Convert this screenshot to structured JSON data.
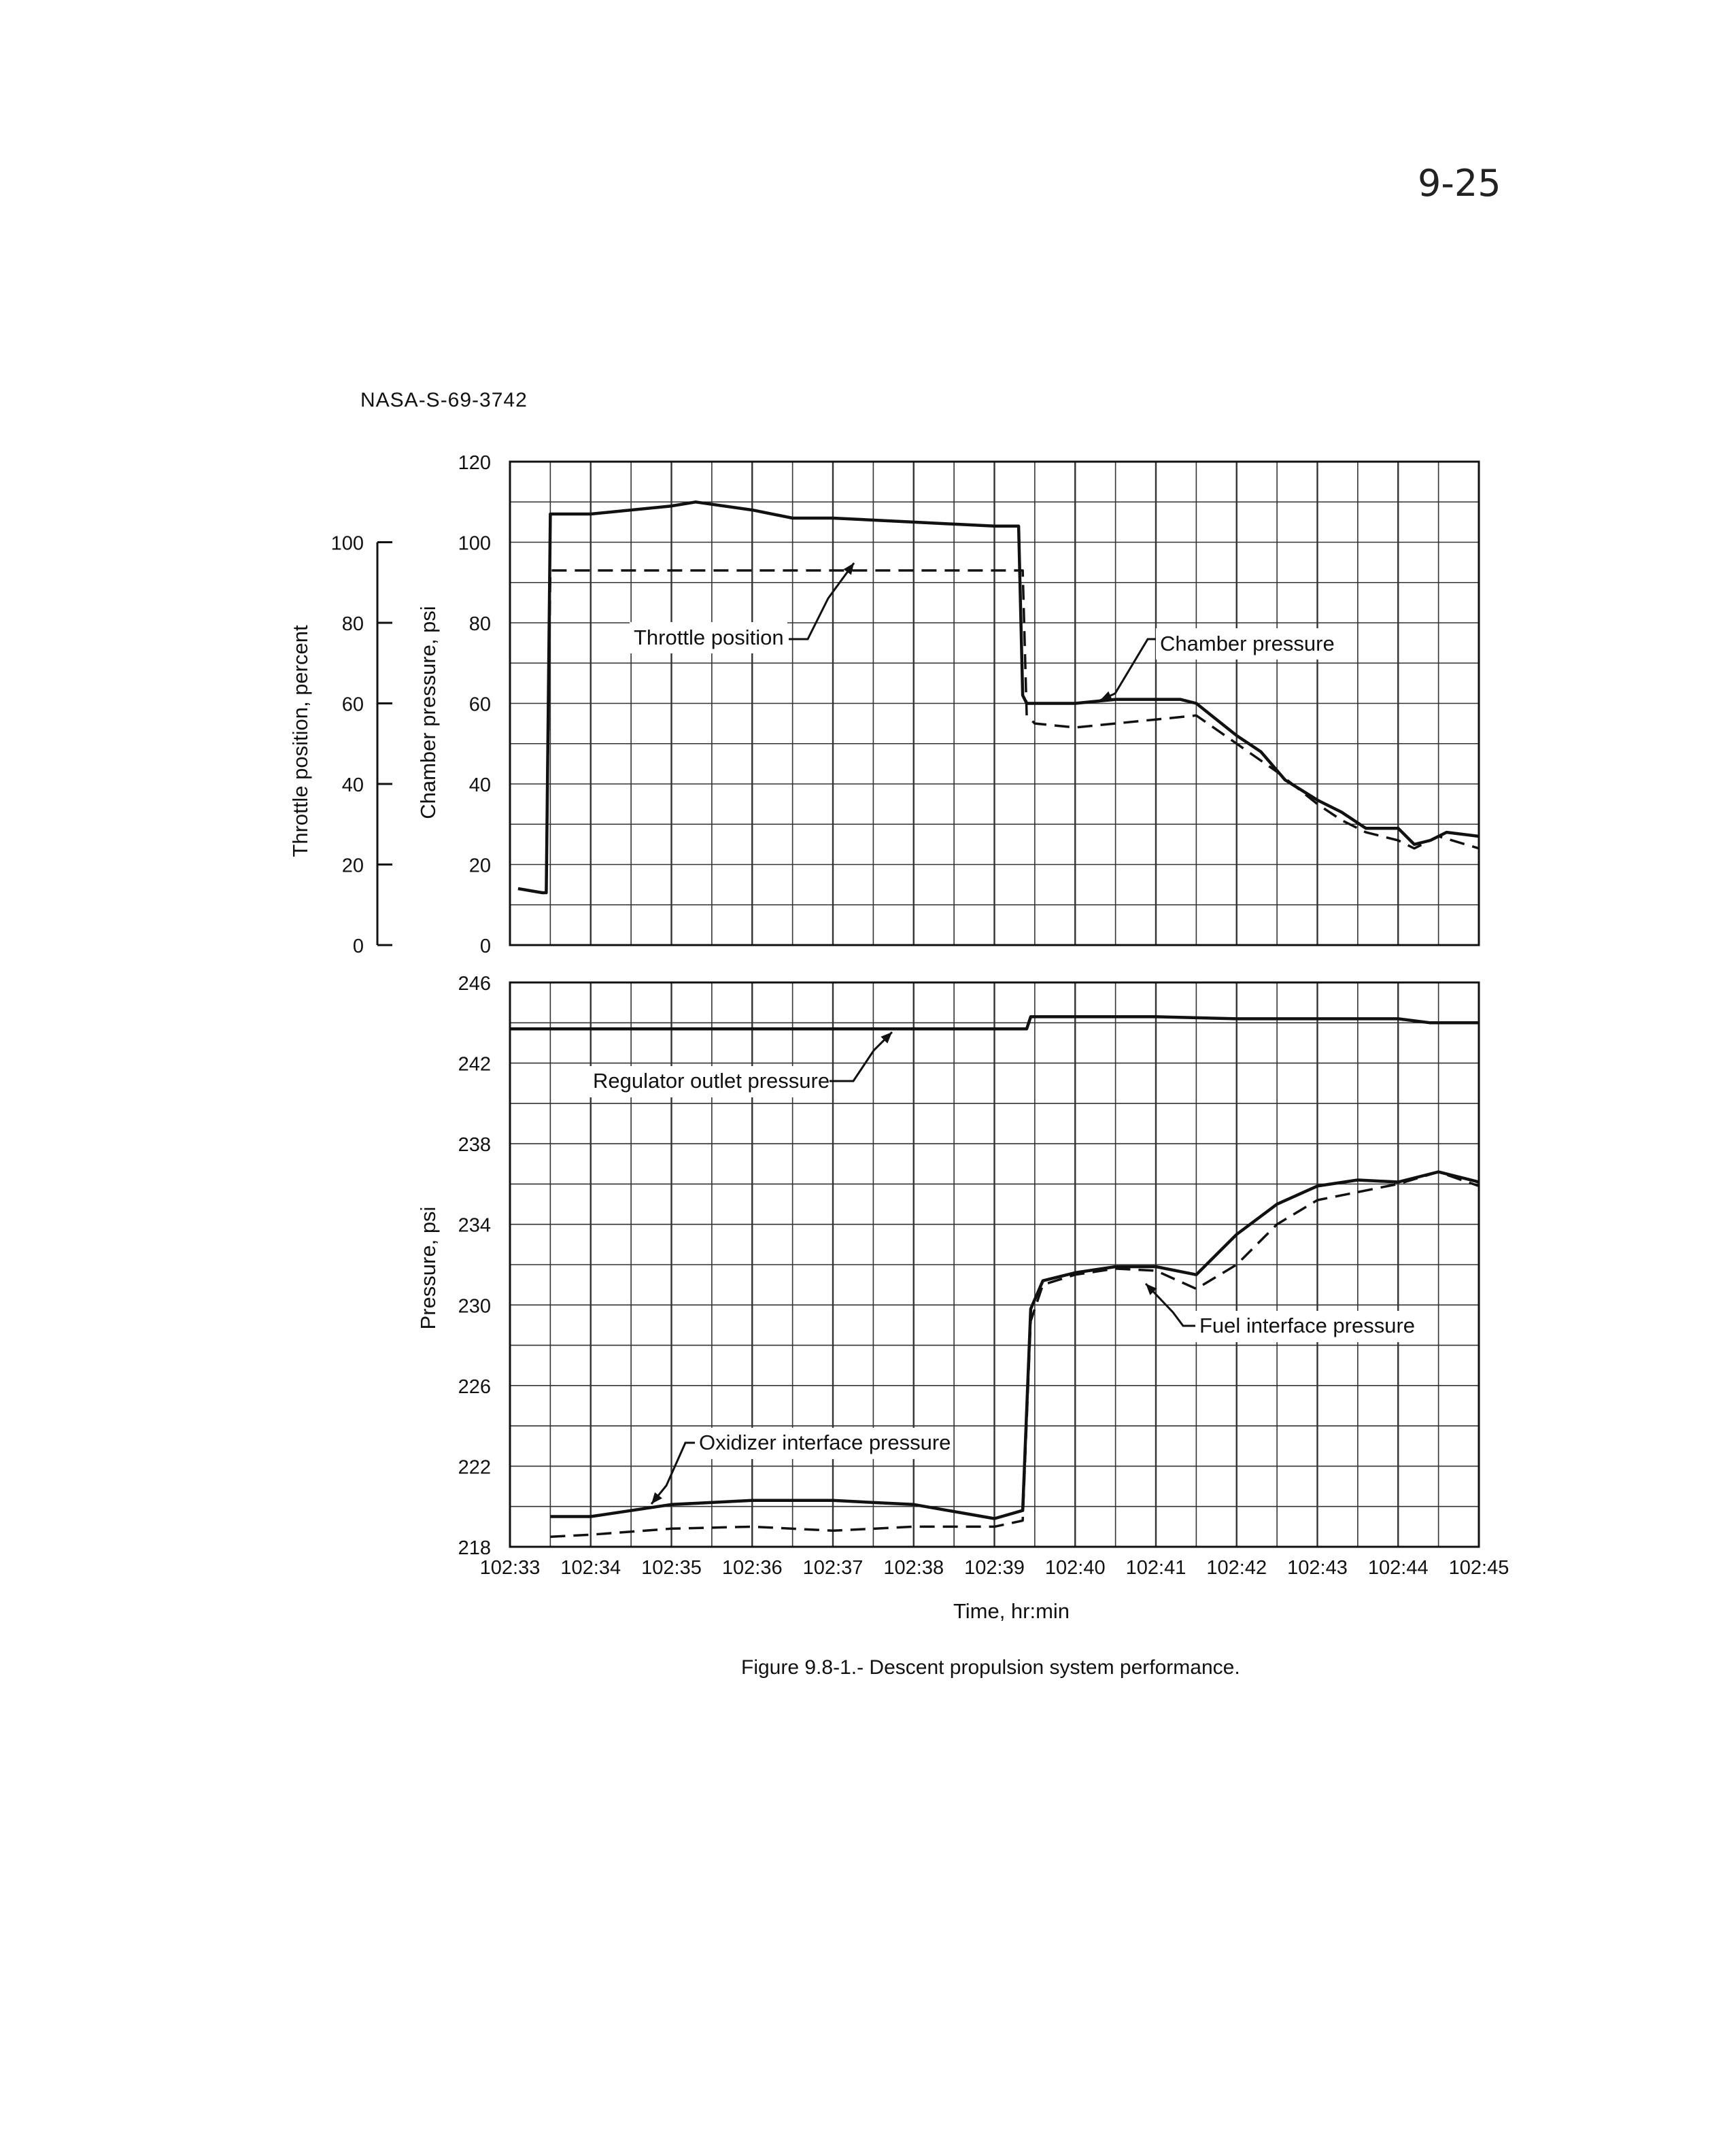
{
  "page_number": "9-25",
  "report_id": "NASA-S-69-3742",
  "caption": "Figure 9.8-1.- Descent propulsion system performance.",
  "colors": {
    "ink": "#111111",
    "grid": "#333333",
    "paper": "#ffffff"
  },
  "chart_data": [
    {
      "type": "line",
      "panel": "top",
      "x_ticks": [
        "102:33",
        "102:34",
        "102:35",
        "102:36",
        "102:37",
        "102:38",
        "102:39",
        "102:40",
        "102:41",
        "102:42",
        "102:43",
        "102:44",
        "102:45"
      ],
      "xlim": [
        "102:33",
        "102:45"
      ],
      "ylim": [
        0,
        120
      ],
      "ylabel": "Chamber pressure, psi",
      "y_ticks": [
        "0",
        "20",
        "40",
        "60",
        "80",
        "100",
        "120"
      ],
      "secondary_ylabel": "Throttle position, percent",
      "secondary_ylim": [
        0,
        100
      ],
      "secondary_y_ticks": [
        "0",
        "20",
        "40",
        "60",
        "80",
        "100"
      ],
      "grid": true,
      "annotations": [
        "Throttle position",
        "Chamber pressure"
      ],
      "series": [
        {
          "name": "Chamber pressure",
          "style": "solid",
          "x": [
            "102:33.1",
            "102:33.4",
            "102:33.45",
            "102:33.5",
            "102:34",
            "102:35",
            "102:35.3",
            "102:36",
            "102:36.5",
            "102:37",
            "102:38",
            "102:39",
            "102:39.3",
            "102:39.35",
            "102:39.4",
            "102:39.6",
            "102:40",
            "102:40.5",
            "102:41",
            "102:41.3",
            "102:41.5",
            "102:42",
            "102:42.3",
            "102:42.6",
            "102:43",
            "102:43.3",
            "102:43.6",
            "102:44",
            "102:44.2",
            "102:44.4",
            "102:44.6",
            "102:45"
          ],
          "y": [
            14,
            13,
            13,
            107,
            107,
            109,
            110,
            108,
            106,
            106,
            105,
            104,
            104,
            62,
            60,
            60,
            60,
            61,
            61,
            61,
            60,
            52,
            48,
            41,
            36,
            33,
            29,
            29,
            25,
            26,
            28,
            27
          ]
        },
        {
          "name": "Throttle position",
          "style": "dashed",
          "x": [
            "102:33.45",
            "102:33.5",
            "102:34",
            "102:35",
            "102:36",
            "102:37",
            "102:38",
            "102:39",
            "102:39.35",
            "102:39.4",
            "102:39.5",
            "102:40",
            "102:41",
            "102:41.5",
            "102:42",
            "102:42.5",
            "102:43",
            "102:43.3",
            "102:43.6",
            "102:44",
            "102:44.2",
            "102:44.5",
            "102:45"
          ],
          "y": [
            13,
            93,
            93,
            93,
            93,
            93,
            93,
            93,
            93,
            57,
            55,
            54,
            56,
            57,
            50,
            43,
            35,
            31,
            28,
            26,
            24,
            27,
            24
          ]
        }
      ]
    },
    {
      "type": "line",
      "panel": "bottom",
      "x_ticks": [
        "102:33",
        "102:34",
        "102:35",
        "102:36",
        "102:37",
        "102:38",
        "102:39",
        "102:40",
        "102:41",
        "102:42",
        "102:43",
        "102:44",
        "102:45"
      ],
      "xlim": [
        "102:33",
        "102:45"
      ],
      "ylim": [
        218,
        246
      ],
      "ylabel": "Pressure, psi",
      "xlabel": "Time, hr:min",
      "y_ticks": [
        "218",
        "222",
        "226",
        "230",
        "234",
        "238",
        "242",
        "246"
      ],
      "grid": true,
      "annotations": [
        "Regulator outlet pressure",
        "Fuel interface pressure",
        "Oxidizer interface pressure"
      ],
      "series": [
        {
          "name": "Regulator outlet pressure",
          "style": "solid",
          "x": [
            "102:33",
            "102:34",
            "102:35",
            "102:36",
            "102:37",
            "102:38",
            "102:39",
            "102:39.4",
            "102:39.45",
            "102:40",
            "102:41",
            "102:42",
            "102:43",
            "102:44",
            "102:44.4",
            "102:45"
          ],
          "y": [
            243.7,
            243.7,
            243.7,
            243.7,
            243.7,
            243.7,
            243.7,
            243.7,
            244.3,
            244.3,
            244.3,
            244.2,
            244.2,
            244.2,
            244.0,
            244.0
          ]
        },
        {
          "name": "Fuel interface pressure",
          "style": "dashed",
          "x": [
            "102:33.5",
            "102:34",
            "102:35",
            "102:36",
            "102:37",
            "102:38",
            "102:39",
            "102:39.35",
            "102:39.45",
            "102:39.6",
            "102:40",
            "102:40.5",
            "102:41",
            "102:41.5",
            "102:42",
            "102:42.5",
            "102:43",
            "102:43.5",
            "102:44",
            "102:44.5",
            "102:45"
          ],
          "y": [
            218.5,
            218.6,
            218.9,
            219.0,
            218.8,
            219.0,
            219.0,
            219.3,
            229.2,
            231.0,
            231.5,
            231.8,
            231.7,
            230.8,
            232.0,
            234.0,
            235.2,
            235.6,
            236.0,
            236.6,
            235.9
          ]
        },
        {
          "name": "Oxidizer interface pressure",
          "style": "solid",
          "x": [
            "102:33.5",
            "102:34",
            "102:35",
            "102:36",
            "102:37",
            "102:38",
            "102:39",
            "102:39.35",
            "102:39.45",
            "102:39.6",
            "102:40",
            "102:40.5",
            "102:41",
            "102:41.5",
            "102:42",
            "102:42.5",
            "102:43",
            "102:43.5",
            "102:44",
            "102:44.5",
            "102:45"
          ],
          "y": [
            219.5,
            219.5,
            220.1,
            220.3,
            220.3,
            220.1,
            219.4,
            219.8,
            229.8,
            231.2,
            231.6,
            231.9,
            231.9,
            231.5,
            233.5,
            235.0,
            235.9,
            236.2,
            236.1,
            236.6,
            236.1
          ]
        }
      ]
    }
  ]
}
